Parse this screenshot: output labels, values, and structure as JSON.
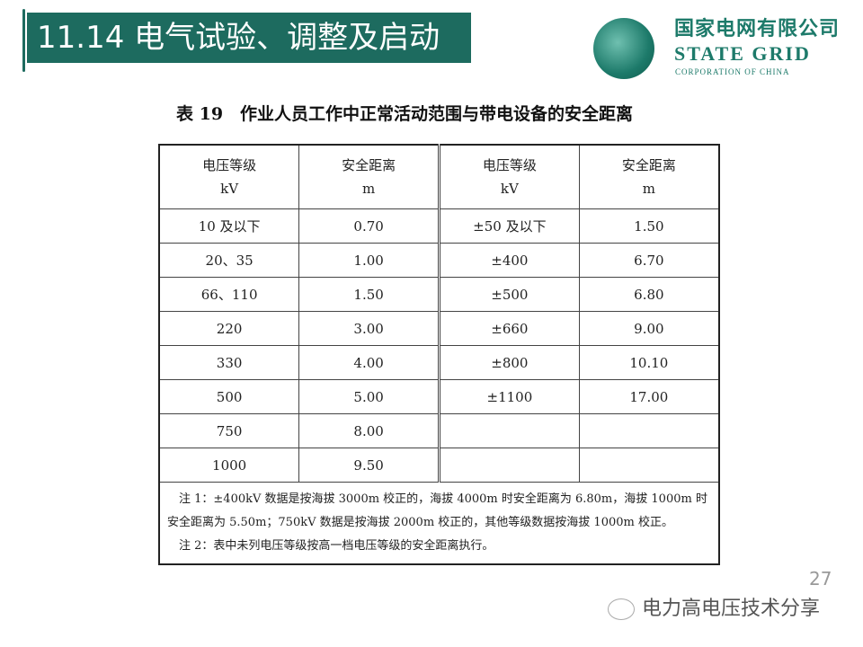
{
  "header": {
    "title": "11.14 电气试验、调整及启动"
  },
  "logo": {
    "cn": "国家电网有限公司",
    "en": "STATE GRID",
    "sub": "CORPORATION OF CHINA",
    "color": "#1d7a6a"
  },
  "caption": "表 19　作业人员工作中正常活动范围与带电设备的安全距离",
  "table": {
    "headers": [
      [
        "电压等级",
        "kV"
      ],
      [
        "安全距离",
        "m"
      ],
      [
        "电压等级",
        "kV"
      ],
      [
        "安全距离",
        "m"
      ]
    ],
    "rows": [
      [
        "10 及以下",
        "0.70",
        "±50 及以下",
        "1.50"
      ],
      [
        "20、35",
        "1.00",
        "±400",
        "6.70"
      ],
      [
        "66、110",
        "1.50",
        "±500",
        "6.80"
      ],
      [
        "220",
        "3.00",
        "±660",
        "9.00"
      ],
      [
        "330",
        "4.00",
        "±800",
        "10.10"
      ],
      [
        "500",
        "5.00",
        "±1100",
        "17.00"
      ],
      [
        "750",
        "8.00",
        "",
        ""
      ],
      [
        "1000",
        "9.50",
        "",
        ""
      ]
    ],
    "note1": "　注 1：±400kV 数据是按海拔 3000m 校正的，海拔 4000m 时安全距离为 6.80m，海拔 1000m 时安全距离为 5.50m；750kV 数据是按海拔 2000m 校正的，其他等级数据按海拔 1000m 校正。",
    "note2": "　注 2：表中未列电压等级按高一档电压等级的安全距离执行。"
  },
  "watermark": "电力高电压技术分享",
  "page_number": "27"
}
